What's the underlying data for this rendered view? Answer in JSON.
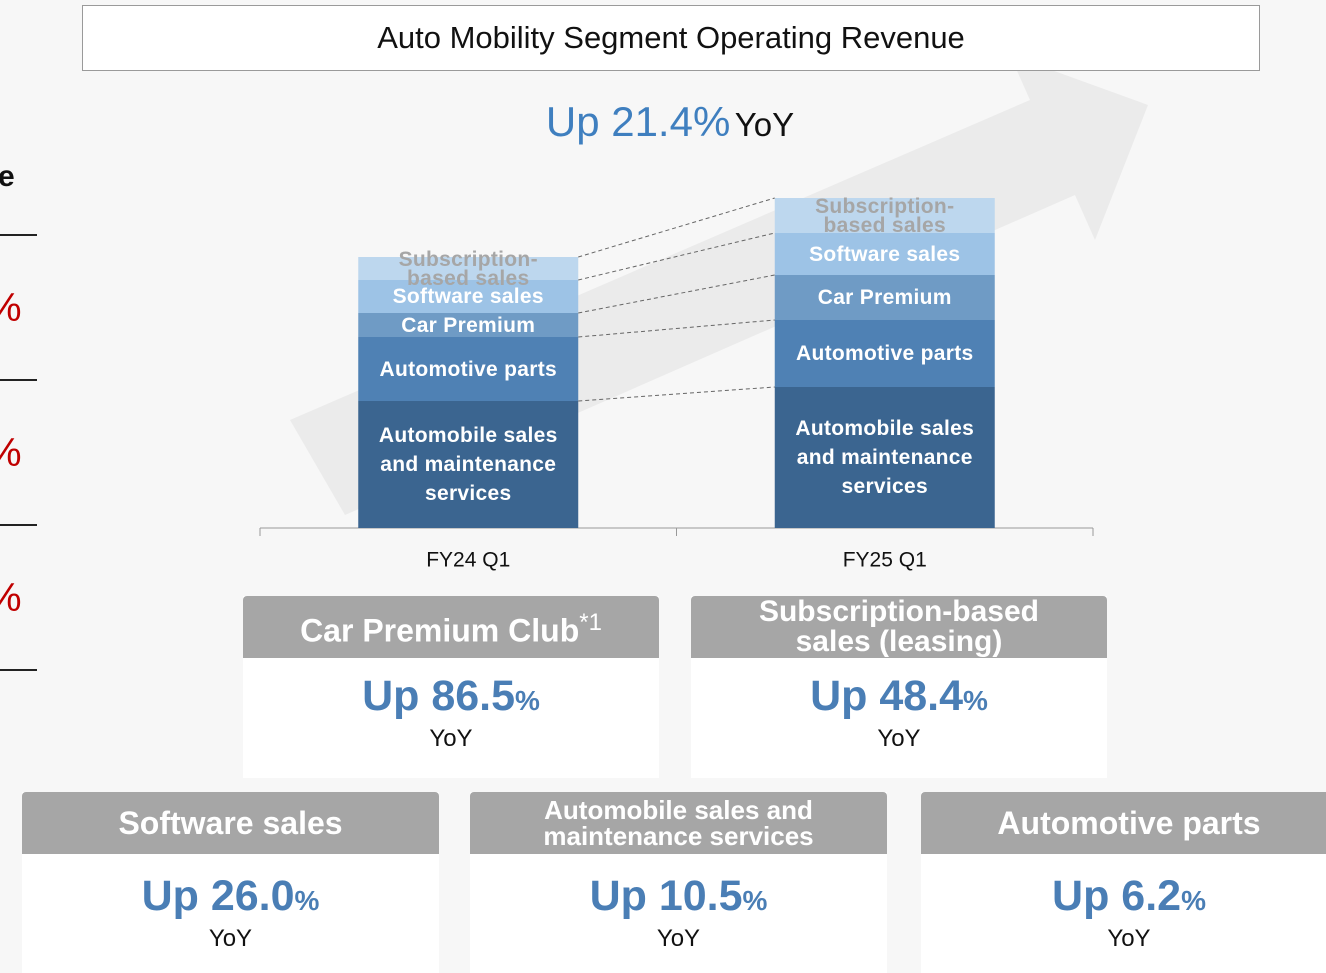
{
  "left_fragments": {
    "heading": "e",
    "values": [
      "%",
      "%",
      "%"
    ]
  },
  "title": "Auto Mobility Segment Operating Revenue",
  "headline": {
    "value": "Up 21.4%",
    "suffix": "YoY"
  },
  "chart_data": {
    "type": "bar",
    "stacked": true,
    "categories": [
      "FY24 Q1",
      "FY25 Q1"
    ],
    "series": [
      {
        "name": "Automobile sales and maintenance services",
        "color": "#3b6590",
        "label_color": "#ffffff",
        "values": [
          127,
          141
        ]
      },
      {
        "name": "Automotive parts",
        "color": "#4f81b4",
        "label_color": "#ffffff",
        "values": [
          64,
          67
        ]
      },
      {
        "name": "Car Premium",
        "color": "#6f9bc5",
        "label_color": "#ffffff",
        "values": [
          24,
          45
        ]
      },
      {
        "name": "Software sales",
        "color": "#9dc3e6",
        "label_color": "#ffffff",
        "values": [
          33,
          42
        ]
      },
      {
        "name": "Subscription-based sales",
        "color": "#bdd7ee",
        "label_color": "#a6a6a6",
        "values": [
          23,
          35
        ]
      }
    ]
  },
  "cards": [
    {
      "title": "Car Premium Club",
      "note": "*1",
      "value": "Up 86.5",
      "unit": "%",
      "period": "YoY"
    },
    {
      "title": "Subscription-based sales (leasing)",
      "value": "Up 48.4",
      "unit": "%",
      "period": "YoY"
    },
    {
      "title": "Software sales",
      "value": "Up 26.0",
      "unit": "%",
      "period": "YoY"
    },
    {
      "title": "Automobile sales and maintenance services",
      "value": "Up 10.5",
      "unit": "%",
      "period": "YoY"
    },
    {
      "title": "Automotive parts",
      "value": "Up 6.2",
      "unit": "%",
      "period": "YoY"
    }
  ]
}
